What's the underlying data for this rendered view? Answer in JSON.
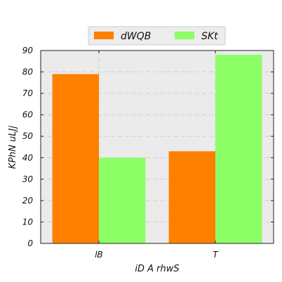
{
  "chart_data": {
    "type": "bar",
    "categories": [
      "lB",
      "T"
    ],
    "series": [
      {
        "name": "dWQB",
        "values": [
          79,
          43
        ],
        "color": "#ff8000"
      },
      {
        "name": "SKt",
        "values": [
          40,
          88
        ],
        "color": "#8cff66"
      }
    ],
    "title": "",
    "xlabel": "iD A rhwS",
    "ylabel": "KPhN uLJj",
    "ylim": [
      0,
      90
    ],
    "yticks": [
      0,
      10,
      20,
      30,
      40,
      50,
      60,
      70,
      80,
      90
    ],
    "grid": true,
    "legend_position": "top-center",
    "plot_background": "#ebebeb"
  }
}
